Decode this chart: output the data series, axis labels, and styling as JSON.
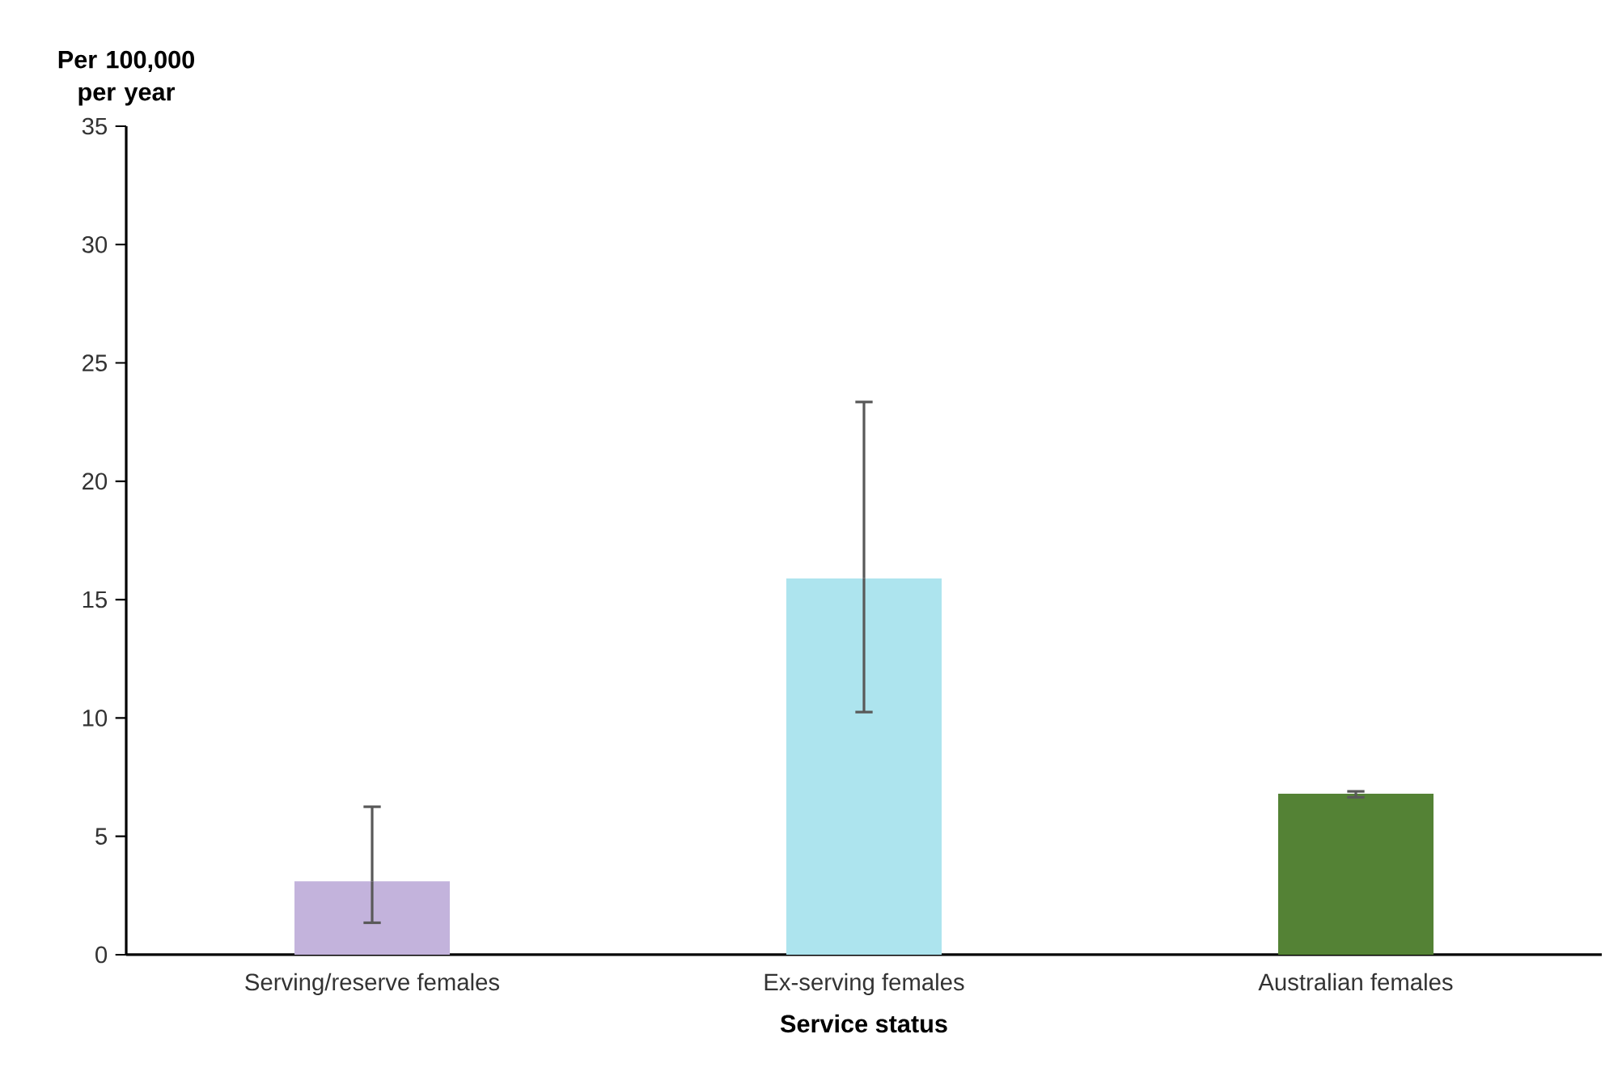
{
  "chart_data": {
    "type": "bar",
    "ylabel": "Per 100,000 per year",
    "xlabel": "Service status",
    "categories": [
      "Serving/reserve females",
      "Ex-serving females",
      "Australian females"
    ],
    "values": [
      3.1,
      15.9,
      6.8
    ],
    "colors": [
      "#c3b3dc",
      "#ade4ee",
      "#548235"
    ],
    "errors": [
      [
        1.35,
        6.25
      ],
      [
        10.25,
        23.35
      ],
      [
        6.65,
        6.9
      ]
    ],
    "ylim": [
      0,
      35
    ],
    "yticks": [
      0,
      5,
      10,
      15,
      20,
      25,
      30,
      35
    ],
    "grid": false
  }
}
